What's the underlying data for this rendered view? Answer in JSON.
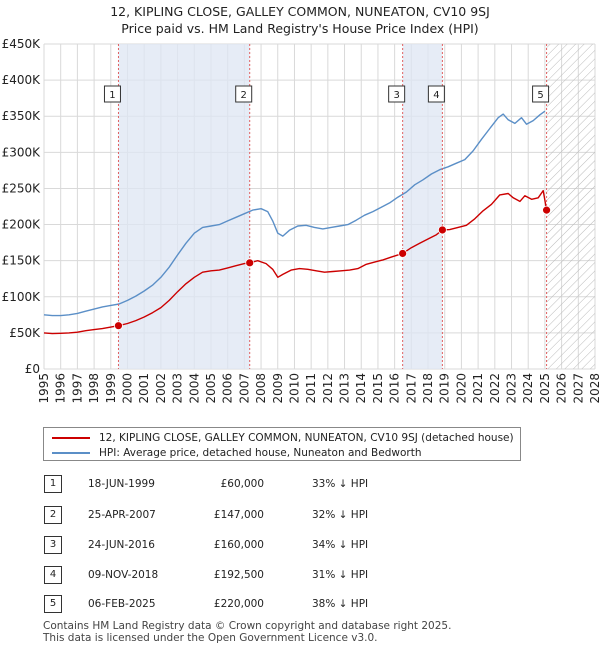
{
  "chart_data": {
    "type": "line",
    "title": "12, KIPLING CLOSE, GALLEY COMMON, NUNEATON, CV10 9SJ",
    "subtitle": "Price paid vs. HM Land Registry's House Price Index (HPI)",
    "xlim": [
      1995,
      2028
    ],
    "ylim": [
      0,
      450000
    ],
    "x_ticks": [
      "1995",
      "1996",
      "1997",
      "1998",
      "1999",
      "2000",
      "2001",
      "2002",
      "2003",
      "2004",
      "2005",
      "2006",
      "2007",
      "2008",
      "2009",
      "2010",
      "2011",
      "2012",
      "2013",
      "2014",
      "2015",
      "2016",
      "2017",
      "2018",
      "2019",
      "2020",
      "2021",
      "2022",
      "2023",
      "2024",
      "2025",
      "2026",
      "2027",
      "2028"
    ],
    "y_ticks": [
      {
        "value": 0,
        "label": "£0"
      },
      {
        "value": 50000,
        "label": "£50K"
      },
      {
        "value": 100000,
        "label": "£100K"
      },
      {
        "value": 150000,
        "label": "£150K"
      },
      {
        "value": 200000,
        "label": "£200K"
      },
      {
        "value": 250000,
        "label": "£250K"
      },
      {
        "value": 300000,
        "label": "£300K"
      },
      {
        "value": 350000,
        "label": "£350K"
      },
      {
        "value": 400000,
        "label": "£400K"
      },
      {
        "value": 450000,
        "label": "£450K"
      }
    ],
    "grid": true,
    "future_hatch_from": 2025.1,
    "shaded_ranges": [
      [
        1999.46,
        2007.32
      ],
      [
        2016.48,
        2018.86
      ]
    ],
    "series": [
      {
        "name": "12, KIPLING CLOSE, GALLEY COMMON, NUNEATON, CV10 9SJ (detached house)",
        "color": "#cc0000",
        "points": [
          [
            1995.0,
            50000
          ],
          [
            1995.5,
            49000
          ],
          [
            1996.0,
            49500
          ],
          [
            1996.5,
            50000
          ],
          [
            1997.0,
            51000
          ],
          [
            1997.5,
            53000
          ],
          [
            1998.0,
            54500
          ],
          [
            1998.5,
            56000
          ],
          [
            1999.0,
            58000
          ],
          [
            1999.46,
            60000
          ],
          [
            2000.0,
            63000
          ],
          [
            2000.5,
            67000
          ],
          [
            2001.0,
            72000
          ],
          [
            2001.5,
            78000
          ],
          [
            2002.0,
            85000
          ],
          [
            2002.5,
            95000
          ],
          [
            2003.0,
            107000
          ],
          [
            2003.5,
            118000
          ],
          [
            2004.0,
            127000
          ],
          [
            2004.5,
            134000
          ],
          [
            2005.0,
            136000
          ],
          [
            2005.5,
            137000
          ],
          [
            2006.0,
            140000
          ],
          [
            2006.5,
            143000
          ],
          [
            2007.0,
            146000
          ],
          [
            2007.32,
            147000
          ],
          [
            2007.8,
            150000
          ],
          [
            2008.3,
            146000
          ],
          [
            2008.7,
            138000
          ],
          [
            2009.0,
            127000
          ],
          [
            2009.3,
            131000
          ],
          [
            2009.8,
            137000
          ],
          [
            2010.3,
            139000
          ],
          [
            2010.8,
            138000
          ],
          [
            2011.3,
            136000
          ],
          [
            2011.8,
            134000
          ],
          [
            2012.3,
            135000
          ],
          [
            2012.8,
            136000
          ],
          [
            2013.3,
            137000
          ],
          [
            2013.8,
            139000
          ],
          [
            2014.3,
            145000
          ],
          [
            2014.8,
            148000
          ],
          [
            2015.3,
            151000
          ],
          [
            2015.8,
            155000
          ],
          [
            2016.48,
            160000
          ],
          [
            2017.0,
            168000
          ],
          [
            2017.5,
            174000
          ],
          [
            2018.0,
            180000
          ],
          [
            2018.5,
            186000
          ],
          [
            2018.86,
            192500
          ],
          [
            2019.3,
            193000
          ],
          [
            2019.8,
            196000
          ],
          [
            2020.3,
            199000
          ],
          [
            2020.8,
            208000
          ],
          [
            2021.3,
            219000
          ],
          [
            2021.8,
            228000
          ],
          [
            2022.3,
            241000
          ],
          [
            2022.8,
            243000
          ],
          [
            2023.1,
            237000
          ],
          [
            2023.5,
            232000
          ],
          [
            2023.8,
            240000
          ],
          [
            2024.2,
            235000
          ],
          [
            2024.6,
            237000
          ],
          [
            2024.9,
            247000
          ],
          [
            2025.1,
            220000
          ]
        ]
      },
      {
        "name": "HPI: Average price, detached house, Nuneaton and Bedworth",
        "color": "#5b8fc7",
        "points": [
          [
            1995.0,
            75000
          ],
          [
            1995.5,
            74000
          ],
          [
            1996.0,
            74000
          ],
          [
            1996.5,
            75000
          ],
          [
            1997.0,
            77000
          ],
          [
            1997.5,
            80000
          ],
          [
            1998.0,
            83000
          ],
          [
            1998.5,
            86000
          ],
          [
            1999.0,
            88000
          ],
          [
            1999.5,
            90000
          ],
          [
            2000.0,
            95000
          ],
          [
            2000.5,
            101000
          ],
          [
            2001.0,
            108000
          ],
          [
            2001.5,
            116000
          ],
          [
            2002.0,
            127000
          ],
          [
            2002.5,
            141000
          ],
          [
            2003.0,
            158000
          ],
          [
            2003.5,
            174000
          ],
          [
            2004.0,
            188000
          ],
          [
            2004.5,
            196000
          ],
          [
            2005.0,
            198000
          ],
          [
            2005.5,
            200000
          ],
          [
            2006.0,
            205000
          ],
          [
            2006.5,
            210000
          ],
          [
            2007.0,
            215000
          ],
          [
            2007.5,
            220000
          ],
          [
            2008.0,
            222000
          ],
          [
            2008.4,
            218000
          ],
          [
            2008.7,
            205000
          ],
          [
            2009.0,
            188000
          ],
          [
            2009.3,
            184000
          ],
          [
            2009.7,
            192000
          ],
          [
            2010.2,
            198000
          ],
          [
            2010.7,
            199000
          ],
          [
            2011.2,
            196000
          ],
          [
            2011.7,
            194000
          ],
          [
            2012.2,
            196000
          ],
          [
            2012.7,
            198000
          ],
          [
            2013.2,
            200000
          ],
          [
            2013.7,
            206000
          ],
          [
            2014.2,
            213000
          ],
          [
            2014.7,
            218000
          ],
          [
            2015.2,
            224000
          ],
          [
            2015.7,
            230000
          ],
          [
            2016.2,
            238000
          ],
          [
            2016.7,
            245000
          ],
          [
            2017.2,
            255000
          ],
          [
            2017.7,
            262000
          ],
          [
            2018.2,
            270000
          ],
          [
            2018.7,
            276000
          ],
          [
            2019.2,
            280000
          ],
          [
            2019.7,
            285000
          ],
          [
            2020.2,
            290000
          ],
          [
            2020.7,
            302000
          ],
          [
            2021.2,
            318000
          ],
          [
            2021.7,
            333000
          ],
          [
            2022.2,
            348000
          ],
          [
            2022.5,
            353000
          ],
          [
            2022.8,
            345000
          ],
          [
            2023.2,
            340000
          ],
          [
            2023.6,
            348000
          ],
          [
            2023.9,
            339000
          ],
          [
            2024.3,
            344000
          ],
          [
            2024.7,
            352000
          ],
          [
            2025.0,
            357000
          ]
        ]
      }
    ],
    "markers": [
      {
        "label": "1",
        "x": 1999.46,
        "value": 60000
      },
      {
        "label": "2",
        "x": 2007.32,
        "value": 147000
      },
      {
        "label": "3",
        "x": 2016.48,
        "value": 160000
      },
      {
        "label": "4",
        "x": 2018.86,
        "value": 192500
      },
      {
        "label": "5",
        "x": 2025.1,
        "value": 220000
      }
    ]
  },
  "legend": {
    "property_label": "12, KIPLING CLOSE, GALLEY COMMON, NUNEATON, CV10 9SJ (detached house)",
    "hpi_label": "HPI: Average price, detached house, Nuneaton and Bedworth"
  },
  "transactions": [
    {
      "num": "1",
      "date": "18-JUN-1999",
      "price": "£60,000",
      "hpi": "33% ↓ HPI"
    },
    {
      "num": "2",
      "date": "25-APR-2007",
      "price": "£147,000",
      "hpi": "32% ↓ HPI"
    },
    {
      "num": "3",
      "date": "24-JUN-2016",
      "price": "£160,000",
      "hpi": "34% ↓ HPI"
    },
    {
      "num": "4",
      "date": "09-NOV-2018",
      "price": "£192,500",
      "hpi": "31% ↓ HPI"
    },
    {
      "num": "5",
      "date": "06-FEB-2025",
      "price": "£220,000",
      "hpi": "38% ↓ HPI"
    }
  ],
  "footer": {
    "line1": "Contains HM Land Registry data © Crown copyright and database right 2025.",
    "line2": "This data is licensed under the Open Government Licence v3.0."
  }
}
